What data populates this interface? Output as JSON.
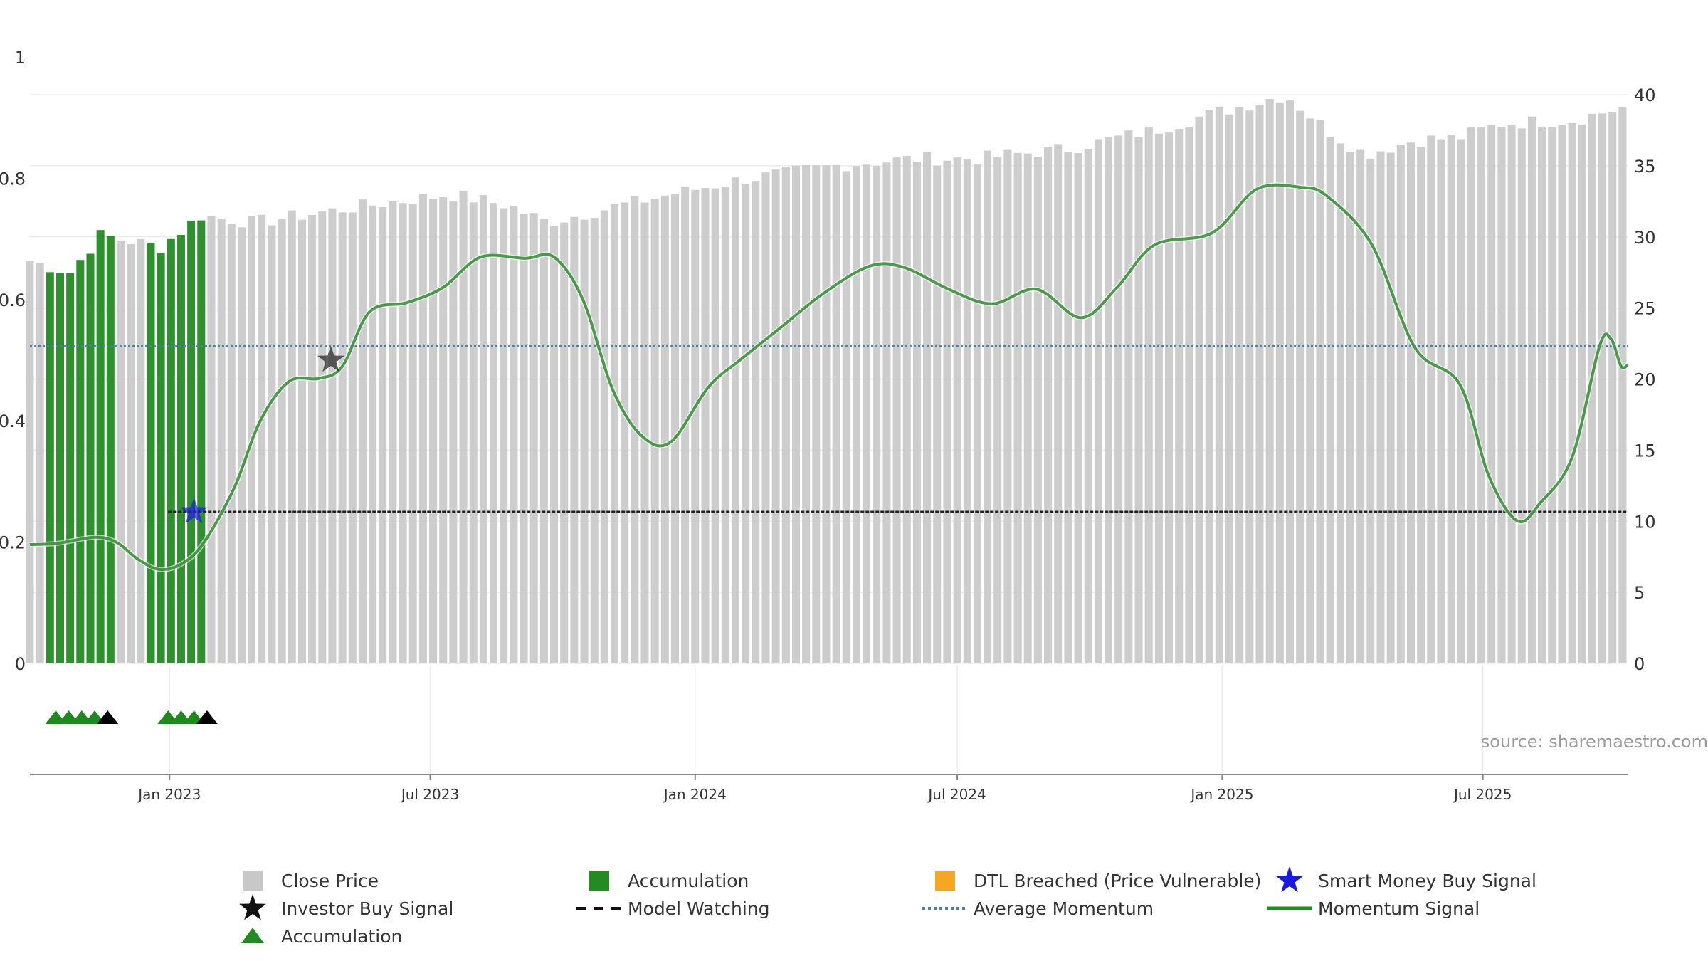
{
  "chart_data": {
    "type": "bar",
    "title": "",
    "source": "source: sharemaestro.com",
    "y_left": {
      "ylim": [
        0,
        1
      ],
      "ticks": [
        "0",
        "0.2",
        "0.4",
        "0.6",
        "0.8",
        "1"
      ],
      "tick_values": [
        0,
        0.2,
        0.4,
        0.6,
        0.8,
        1
      ]
    },
    "y_right": {
      "ylim": [
        0,
        40.5
      ],
      "ticks": [
        "0",
        "5",
        "10",
        "15",
        "20",
        "25",
        "30",
        "35",
        "40"
      ],
      "tick_values": [
        0,
        5,
        10,
        15,
        20,
        25,
        30,
        35,
        40
      ]
    },
    "x": {
      "start": "2022-09-26",
      "end": "2025-10-10",
      "ticks": [
        {
          "label": "Jan 2023",
          "date": "2023-01-01"
        },
        {
          "label": "Jul 2023",
          "date": "2023-07-01"
        },
        {
          "label": "Jan 2024",
          "date": "2024-01-01"
        },
        {
          "label": "Jul 2024",
          "date": "2024-07-01"
        },
        {
          "label": "Jan 2025",
          "date": "2025-01-01"
        },
        {
          "label": "Jul 2025",
          "date": "2025-07-01"
        }
      ]
    },
    "colors": {
      "close": "#c8c8c8",
      "accumulation": "#228b22",
      "momentum": "#2e8b2e",
      "avg_momentum": "#4a7fa8",
      "model_watching": "#222222",
      "smart_money": "#1a1ae6",
      "investor": "#111111",
      "dtl": "#f5a623"
    },
    "average_momentum": 0.523,
    "model_watching": {
      "start": "2022-12-31",
      "end": "2025-10-09",
      "value": 0.25
    },
    "close_price": [
      {
        "date": "2022-09-26",
        "price": 28.3
      },
      {
        "date": "2022-10-24",
        "price": 27.5
      },
      {
        "date": "2022-11-14",
        "price": 30.1
      },
      {
        "date": "2022-12-26",
        "price": 29.3
      },
      {
        "date": "2023-01-23",
        "price": 31.5
      },
      {
        "date": "2023-03-01",
        "price": 31.0
      },
      {
        "date": "2023-04-15",
        "price": 31.7
      },
      {
        "date": "2023-05-25",
        "price": 32.3
      },
      {
        "date": "2023-07-15",
        "price": 33.0
      },
      {
        "date": "2023-08-25",
        "price": 32.2
      },
      {
        "date": "2023-09-20",
        "price": 31.0
      },
      {
        "date": "2023-11-01",
        "price": 32.0
      },
      {
        "date": "2023-12-15",
        "price": 33.0
      },
      {
        "date": "2024-02-01",
        "price": 34.0
      },
      {
        "date": "2024-04-15",
        "price": 35.1
      },
      {
        "date": "2024-06-01",
        "price": 35.5
      },
      {
        "date": "2024-07-15",
        "price": 35.5
      },
      {
        "date": "2024-09-15",
        "price": 36.2
      },
      {
        "date": "2024-11-15",
        "price": 37.5
      },
      {
        "date": "2024-12-15",
        "price": 38.4
      },
      {
        "date": "2025-01-15",
        "price": 39.2
      },
      {
        "date": "2025-02-14",
        "price": 40.0
      },
      {
        "date": "2025-03-15",
        "price": 37.5
      },
      {
        "date": "2025-04-10",
        "price": 35.8
      },
      {
        "date": "2025-05-15",
        "price": 36.8
      },
      {
        "date": "2025-06-15",
        "price": 37.0
      },
      {
        "date": "2025-07-15",
        "price": 38.0
      },
      {
        "date": "2025-09-01",
        "price": 38.2
      },
      {
        "date": "2025-10-10",
        "price": 39.2
      }
    ],
    "accumulation_bars": [
      {
        "start": "2022-10-10",
        "end": "2022-11-22"
      },
      {
        "start": "2022-12-19",
        "end": "2023-01-25"
      }
    ],
    "momentum": [
      {
        "date": "2022-09-26",
        "value": 0.196
      },
      {
        "date": "2022-10-15",
        "value": 0.198
      },
      {
        "date": "2022-11-10",
        "value": 0.208
      },
      {
        "date": "2022-11-25",
        "value": 0.2
      },
      {
        "date": "2022-12-10",
        "value": 0.172
      },
      {
        "date": "2022-12-25",
        "value": 0.155
      },
      {
        "date": "2023-01-10",
        "value": 0.165
      },
      {
        "date": "2023-01-25",
        "value": 0.2
      },
      {
        "date": "2023-02-15",
        "value": 0.29
      },
      {
        "date": "2023-03-05",
        "value": 0.4
      },
      {
        "date": "2023-03-25",
        "value": 0.465
      },
      {
        "date": "2023-04-15",
        "value": 0.47
      },
      {
        "date": "2023-05-01",
        "value": 0.49
      },
      {
        "date": "2023-05-20",
        "value": 0.58
      },
      {
        "date": "2023-06-15",
        "value": 0.595
      },
      {
        "date": "2023-07-10",
        "value": 0.62
      },
      {
        "date": "2023-08-05",
        "value": 0.67
      },
      {
        "date": "2023-09-05",
        "value": 0.668
      },
      {
        "date": "2023-09-25",
        "value": 0.67
      },
      {
        "date": "2023-10-15",
        "value": 0.6
      },
      {
        "date": "2023-11-05",
        "value": 0.45
      },
      {
        "date": "2023-11-25",
        "value": 0.375
      },
      {
        "date": "2023-12-15",
        "value": 0.365
      },
      {
        "date": "2024-01-10",
        "value": 0.455
      },
      {
        "date": "2024-02-01",
        "value": 0.5
      },
      {
        "date": "2024-03-01",
        "value": 0.555
      },
      {
        "date": "2024-03-30",
        "value": 0.61
      },
      {
        "date": "2024-05-01",
        "value": 0.655
      },
      {
        "date": "2024-05-25",
        "value": 0.653
      },
      {
        "date": "2024-06-25",
        "value": 0.617
      },
      {
        "date": "2024-07-25",
        "value": 0.593
      },
      {
        "date": "2024-08-25",
        "value": 0.617
      },
      {
        "date": "2024-09-25",
        "value": 0.57
      },
      {
        "date": "2024-10-20",
        "value": 0.62
      },
      {
        "date": "2024-11-15",
        "value": 0.69
      },
      {
        "date": "2024-12-25",
        "value": 0.71
      },
      {
        "date": "2025-01-25",
        "value": 0.782
      },
      {
        "date": "2025-02-25",
        "value": 0.785
      },
      {
        "date": "2025-03-15",
        "value": 0.77
      },
      {
        "date": "2025-04-15",
        "value": 0.69
      },
      {
        "date": "2025-05-15",
        "value": 0.52
      },
      {
        "date": "2025-06-15",
        "value": 0.46
      },
      {
        "date": "2025-07-05",
        "value": 0.31
      },
      {
        "date": "2025-07-25",
        "value": 0.235
      },
      {
        "date": "2025-08-10",
        "value": 0.265
      },
      {
        "date": "2025-09-01",
        "value": 0.34
      },
      {
        "date": "2025-09-20",
        "value": 0.523
      },
      {
        "date": "2025-09-28",
        "value": 0.535
      },
      {
        "date": "2025-10-05",
        "value": 0.49
      },
      {
        "date": "2025-10-10",
        "value": 0.493
      }
    ],
    "investor_buy_signals": [
      {
        "date": "2023-04-23",
        "value": 0.5
      }
    ],
    "smart_money_buy_signals": [
      {
        "date": "2023-01-18",
        "value": 0.25
      }
    ],
    "accumulation_markers": [
      {
        "date": "2022-10-14",
        "color": "green"
      },
      {
        "date": "2022-10-23",
        "color": "green"
      },
      {
        "date": "2022-11-01",
        "color": "green"
      },
      {
        "date": "2022-11-10",
        "color": "green"
      },
      {
        "date": "2022-11-19",
        "color": "black"
      },
      {
        "date": "2022-12-31",
        "color": "green"
      },
      {
        "date": "2023-01-09",
        "color": "green"
      },
      {
        "date": "2023-01-18",
        "color": "green"
      },
      {
        "date": "2023-01-27",
        "color": "black"
      }
    ],
    "legend": [
      {
        "label": "Close Price",
        "symbol": "square",
        "color": "#c8c8c8"
      },
      {
        "label": "Accumulation",
        "symbol": "square",
        "color": "#228b22"
      },
      {
        "label": "DTL Breached (Price Vulnerable)",
        "symbol": "square",
        "color": "#f5a623"
      },
      {
        "label": "Smart Money Buy Signal",
        "symbol": "star",
        "color": "#1a1ae6"
      },
      {
        "label": "Investor Buy Signal",
        "symbol": "star",
        "color": "#111111"
      },
      {
        "label": "Model Watching",
        "symbol": "dash",
        "color": "#111111"
      },
      {
        "label": "Average Momentum",
        "symbol": "dot",
        "color": "#4a7fa8"
      },
      {
        "label": "Momentum Signal",
        "symbol": "line",
        "color": "#228b22"
      },
      {
        "label": "Accumulation",
        "symbol": "triangle",
        "color": "#228b22"
      }
    ]
  }
}
